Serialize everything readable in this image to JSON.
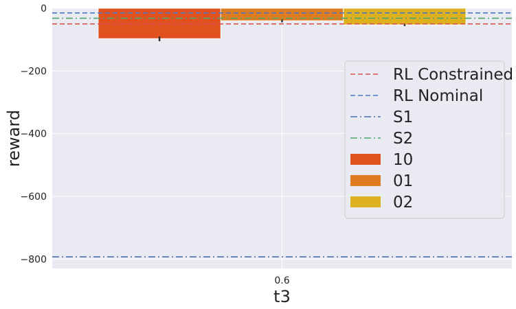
{
  "chart_data": {
    "type": "bar",
    "xlabel": "t3",
    "ylabel": "reward",
    "categories": [
      "0.6"
    ],
    "ylim": [
      -830,
      0
    ],
    "yticks": [
      0,
      -200,
      -400,
      -600,
      -800
    ],
    "ytick_labels": [
      "0",
      "−200",
      "−400",
      "−600",
      "−800"
    ],
    "grid": true,
    "legend_position": "center-right",
    "series": [
      {
        "name": "10",
        "values": [
          -97
        ],
        "error_low": [
          -105
        ],
        "error_high": [
          -90
        ],
        "color": "#e1511f"
      },
      {
        "name": "01",
        "values": [
          -40
        ],
        "error_low": [
          -45
        ],
        "error_high": [
          -36
        ],
        "color": "#de7c1f"
      },
      {
        "name": "02",
        "values": [
          -53
        ],
        "error_low": [
          -57
        ],
        "error_high": [
          -49
        ],
        "color": "#ddb020"
      }
    ],
    "reference_lines": [
      {
        "name": "RL Constrained",
        "value": -50,
        "style": "dashed",
        "color": "#d9534f"
      },
      {
        "name": "RL Nominal",
        "value": -15,
        "style": "dashed",
        "color": "#4b76c4"
      },
      {
        "name": "S1",
        "value": -793,
        "style": "dashdot",
        "color": "#4b6fb3"
      },
      {
        "name": "S2",
        "value": -32,
        "style": "dashdot",
        "color": "#4fa56a"
      }
    ],
    "background_color": "#eaeaf2"
  }
}
